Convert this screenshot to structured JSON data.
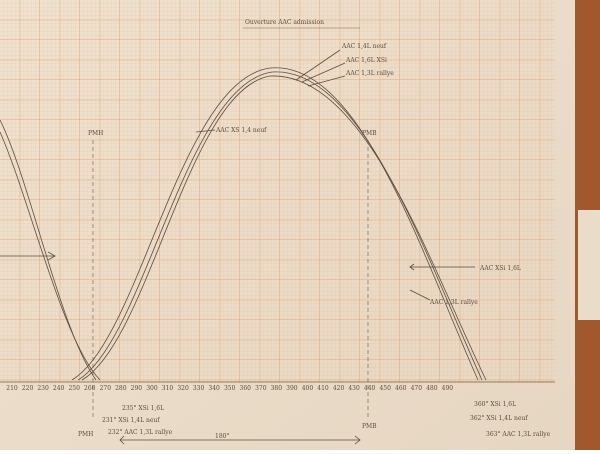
{
  "title": "Ouverture AAC admission",
  "left_label": "PMH",
  "right_label": "PMB",
  "curve_labels": [
    "AAC XS 1,4 neuf",
    "AAC XSi 1,6L",
    "AAC 1,3L rallye"
  ],
  "top_labels": [
    "AAC 1,4L neuf",
    "AAC 1,6L XSi",
    "AAC 1,3L rallye"
  ],
  "axis_labels": [
    "210",
    "220",
    "230",
    "240",
    "250",
    "260",
    "270",
    "280",
    "290",
    "300",
    "310",
    "320",
    "330",
    "340",
    "350",
    "360",
    "370",
    "380",
    "390",
    "400",
    "410",
    "420",
    "430",
    "440",
    "450",
    "460",
    "470",
    "480",
    "490"
  ],
  "open_notes": [
    "235° XSi 1,6L",
    "231° XSi 1,4L neuf",
    "232° AAC 1,3L rallye"
  ],
  "close_notes": [
    "360° XSi 1,6L",
    "362° XSi 1,4L neuf",
    "363° AAC 1,3L rallye"
  ],
  "bottom": {
    "start": "PMH",
    "span": "180°",
    "end": "PMB"
  }
}
